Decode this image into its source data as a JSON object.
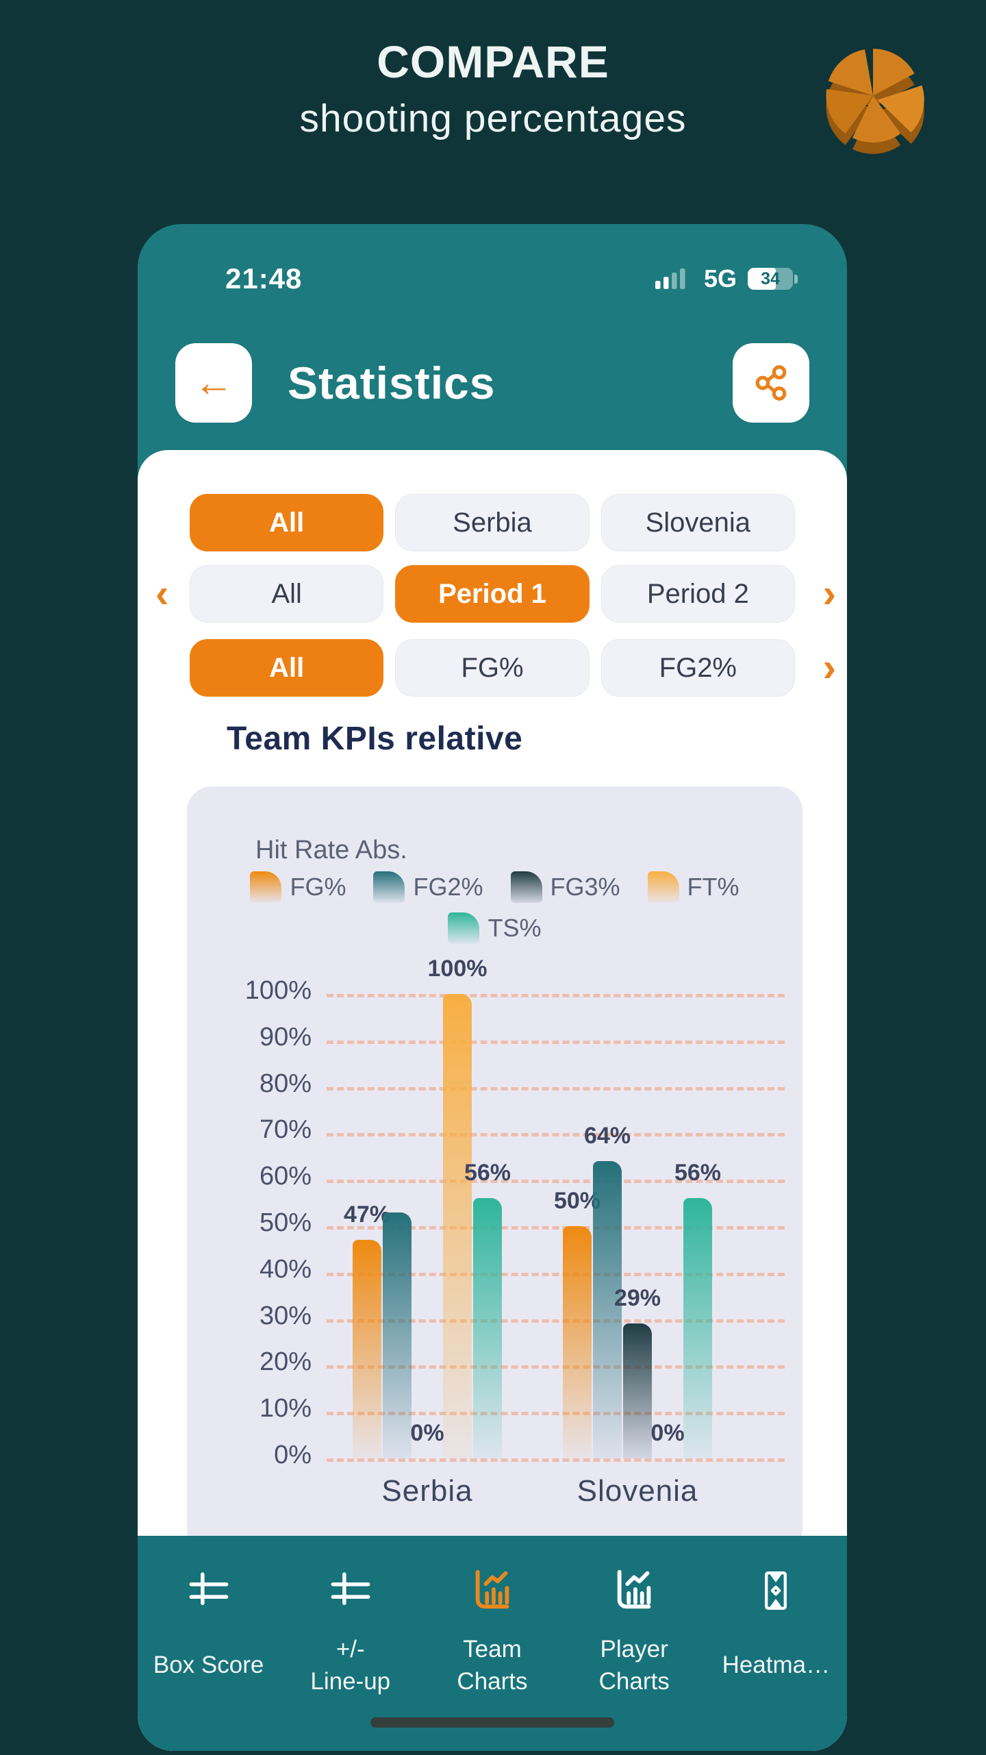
{
  "hero": {
    "title": "COMPARE",
    "subtitle": "shooting percentages"
  },
  "status_bar": {
    "time": "21:48",
    "network": "5G",
    "battery_percent": "34"
  },
  "app_header": {
    "title": "Statistics"
  },
  "filters": {
    "rows": [
      {
        "left_arrow": false,
        "right_arrow": false,
        "chips": [
          {
            "label": "All",
            "selected": true
          },
          {
            "label": "Serbia",
            "selected": false
          },
          {
            "label": "Slovenia",
            "selected": false
          }
        ]
      },
      {
        "left_arrow": true,
        "right_arrow": true,
        "chips": [
          {
            "label": "All",
            "selected": false
          },
          {
            "label": "Period 1",
            "selected": true
          },
          {
            "label": "Period 2",
            "selected": false
          }
        ]
      },
      {
        "left_arrow": false,
        "right_arrow": true,
        "chips": [
          {
            "label": "All",
            "selected": true
          },
          {
            "label": "FG%",
            "selected": false
          },
          {
            "label": "FG2%",
            "selected": false
          }
        ]
      }
    ]
  },
  "section_title": "Team KPIs relative",
  "chart_data": {
    "type": "bar",
    "title": "Hit Rate Abs.",
    "categories": [
      "Serbia",
      "Slovenia"
    ],
    "series": [
      {
        "name": "FG%",
        "color": "#ee8a12",
        "fade": "rgba(238,138,18,0.05)",
        "values": [
          47,
          50
        ],
        "labels": [
          "47%",
          "50%"
        ]
      },
      {
        "name": "FG2%",
        "color": "#25707a",
        "fade": "rgba(37,112,122,0.06)",
        "values": [
          53,
          64
        ],
        "labels": [
          "",
          "64%"
        ]
      },
      {
        "name": "FG3%",
        "color": "#203d44",
        "fade": "rgba(32,61,68,0.10)",
        "values": [
          0,
          29
        ],
        "labels": [
          "0%",
          "29%"
        ]
      },
      {
        "name": "FT%",
        "color": "#f8ae43",
        "fade": "rgba(248,174,67,0.07)",
        "values": [
          100,
          0
        ],
        "labels": [
          "100%",
          "0%"
        ]
      },
      {
        "name": "TS%",
        "color": "#2fb59b",
        "fade": "rgba(47,181,155,0.06)",
        "values": [
          56,
          56
        ],
        "labels": [
          "56%",
          "56%"
        ]
      }
    ],
    "ylim": [
      0,
      100
    ],
    "ytick_step": 10,
    "ytick_suffix": "%",
    "grid": "dashed-horizontal",
    "legend_position": "top-center"
  },
  "bottom_nav": {
    "items": [
      {
        "id": "box-score",
        "icon": "sliders",
        "lines": [
          "Box Score"
        ],
        "active": false
      },
      {
        "id": "lineup",
        "icon": "sliders",
        "lines": [
          "+/-",
          "Line-up"
        ],
        "active": false
      },
      {
        "id": "team-charts",
        "icon": "chart",
        "lines": [
          "Team",
          "Charts"
        ],
        "active": true
      },
      {
        "id": "player-charts",
        "icon": "chart",
        "lines": [
          "Player",
          "Charts"
        ],
        "active": false
      },
      {
        "id": "heatmap",
        "icon": "court",
        "lines": [
          "Heatma…"
        ],
        "active": false
      }
    ]
  },
  "colors": {
    "accent_orange": "#ee8013",
    "teal_header": "#1d7a7e",
    "teal_nav": "#17727a",
    "page_background": "#0f3538",
    "chart_card_background": "#e8e8f3",
    "gridline": "#f0b49a"
  }
}
